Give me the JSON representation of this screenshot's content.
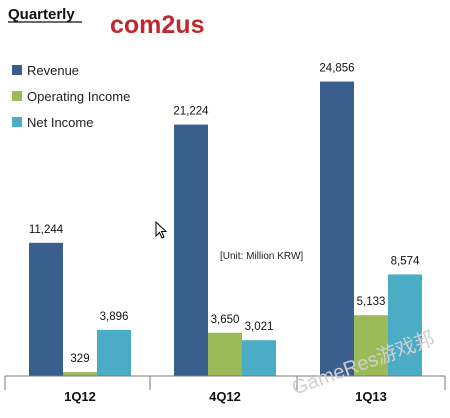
{
  "header": {
    "title": "Quarterly",
    "logo_text": "com2us"
  },
  "colors": {
    "revenue": "#3a5f8f",
    "operating_income": "#9bbb59",
    "net_income": "#4bacc6",
    "logo": "#c0282e"
  },
  "watermark": "GameRes游戏邦",
  "chart_data": {
    "type": "bar",
    "categories": [
      "1Q12",
      "4Q12",
      "1Q13"
    ],
    "series": [
      {
        "name": "Revenue",
        "values": [
          11244,
          21224,
          24856
        ],
        "labels": [
          "11,244",
          "21,224",
          "24,856"
        ]
      },
      {
        "name": "Operating Income",
        "values": [
          329,
          3650,
          5133
        ],
        "labels": [
          "329",
          "3,650",
          "5,133"
        ]
      },
      {
        "name": "Net Income",
        "values": [
          3896,
          3021,
          8574
        ],
        "labels": [
          "3,896",
          "3,021",
          "8,574"
        ]
      }
    ],
    "unit_note": "[Unit: Million KRW]",
    "ylim": [
      0,
      26000
    ],
    "grid": false,
    "legend": "top-left"
  }
}
